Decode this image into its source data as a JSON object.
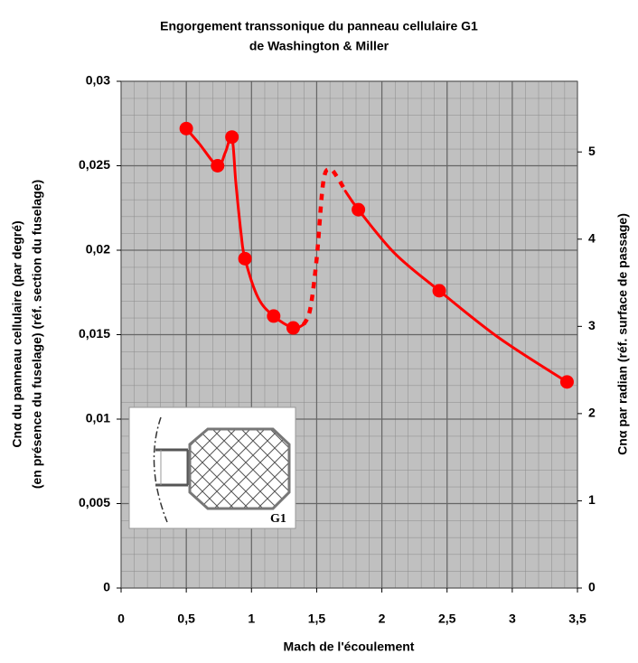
{
  "chart_data": {
    "type": "line",
    "title": [
      "Engorgement transsonique du panneau cellulaire G1",
      "de Washington & Miller"
    ],
    "x_label": "Mach de l'écoulement",
    "y_label": [
      "Cnα du panneau cellulaire (par degré)",
      "(en présence du fuselage) (réf. section du fuselage)"
    ],
    "y2_label": "Cnα par radian (réf. surface de passage)",
    "inset_label": "G1",
    "xlim": [
      0,
      3.5
    ],
    "xticks": [
      0,
      {
        "value": 0.5,
        "label": "0,5"
      },
      1,
      {
        "value": 1.5,
        "label": "1,5"
      },
      2,
      {
        "value": 2.5,
        "label": "2,5"
      },
      3,
      {
        "value": 3.5,
        "label": "3,5"
      }
    ],
    "ylim": [
      0,
      0.03
    ],
    "yticks": [
      0,
      {
        "value": 0.005,
        "label": "0,005"
      },
      {
        "value": 0.01,
        "label": "0,01"
      },
      {
        "value": 0.015,
        "label": "0,015"
      },
      {
        "value": 0.02,
        "label": "0,02"
      },
      {
        "value": 0.025,
        "label": "0,025"
      },
      {
        "value": 0.03,
        "label": "0,03"
      }
    ],
    "y2lim": [
      0,
      5.81
    ],
    "y2ticks": [
      0,
      1,
      2,
      3,
      4,
      5
    ],
    "grid": true,
    "series": [
      {
        "color": "#ff0000",
        "style": "solid",
        "markers": false,
        "x": [
          0.5,
          0.6,
          0.74,
          0.8,
          0.85,
          0.88,
          0.92,
          0.95,
          1.05,
          1.17,
          1.32,
          1.4
        ],
        "values": [
          0.0272,
          0.0263,
          0.025,
          0.0258,
          0.0267,
          0.024,
          0.021,
          0.0195,
          0.0172,
          0.0161,
          0.0154,
          0.0156
        ]
      },
      {
        "color": "#ff0000",
        "style": "dashed",
        "markers": false,
        "x": [
          1.4,
          1.45,
          1.5,
          1.55,
          1.6,
          1.66,
          1.72
        ],
        "values": [
          0.0156,
          0.0165,
          0.0195,
          0.024,
          0.0248,
          0.0243,
          0.0235
        ]
      },
      {
        "color": "#ff0000",
        "style": "solid",
        "markers": false,
        "x": [
          1.72,
          1.82,
          2.1,
          2.44,
          2.9,
          3.42
        ],
        "values": [
          0.0235,
          0.0224,
          0.0198,
          0.0176,
          0.0148,
          0.0122
        ]
      },
      {
        "color": "#ff0000",
        "style": "none",
        "markers": true,
        "x": [
          0.5,
          0.74,
          0.85,
          0.95,
          1.17,
          1.32,
          1.82,
          2.44,
          3.42
        ],
        "values": [
          0.0272,
          0.025,
          0.0267,
          0.0195,
          0.0161,
          0.0154,
          0.0224,
          0.0176,
          0.0122
        ]
      }
    ]
  }
}
